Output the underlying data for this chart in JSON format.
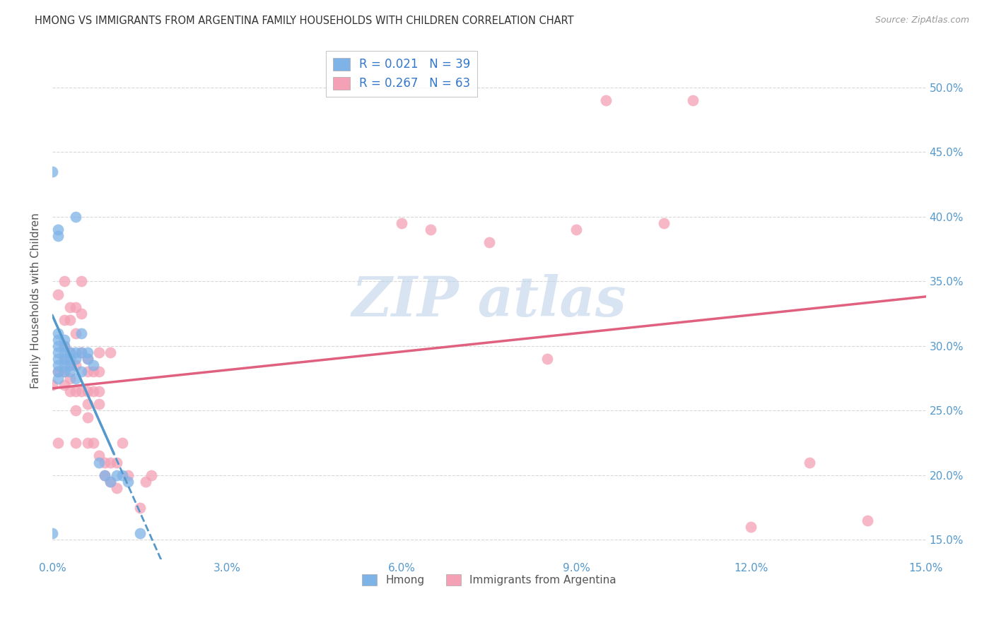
{
  "title": "HMONG VS IMMIGRANTS FROM ARGENTINA FAMILY HOUSEHOLDS WITH CHILDREN CORRELATION CHART",
  "source": "Source: ZipAtlas.com",
  "ylabel": "Family Households with Children",
  "legend_label1": "Hmong",
  "legend_label2": "Immigrants from Argentina",
  "r1": 0.021,
  "n1": 39,
  "r2": 0.267,
  "n2": 63,
  "color1": "#7eb3e8",
  "color2": "#f4a0b5",
  "line_color1": "#5599cc",
  "line_color2": "#e06080",
  "watermark": "ZIP atlas",
  "xlim": [
    0.0,
    0.15
  ],
  "ylim": [
    0.135,
    0.535
  ],
  "xticks": [
    0.0,
    0.03,
    0.06,
    0.09,
    0.12,
    0.15
  ],
  "yticks": [
    0.15,
    0.2,
    0.25,
    0.3,
    0.35,
    0.4,
    0.45,
    0.5
  ],
  "hmong_x": [
    0.0,
    0.0,
    0.001,
    0.001,
    0.001,
    0.001,
    0.001,
    0.001,
    0.001,
    0.001,
    0.001,
    0.001,
    0.002,
    0.002,
    0.002,
    0.002,
    0.002,
    0.002,
    0.003,
    0.003,
    0.003,
    0.003,
    0.004,
    0.004,
    0.004,
    0.004,
    0.005,
    0.005,
    0.005,
    0.006,
    0.006,
    0.007,
    0.008,
    0.009,
    0.01,
    0.011,
    0.012,
    0.013,
    0.015
  ],
  "hmong_y": [
    0.435,
    0.155,
    0.39,
    0.385,
    0.31,
    0.305,
    0.3,
    0.295,
    0.29,
    0.285,
    0.28,
    0.275,
    0.305,
    0.3,
    0.295,
    0.29,
    0.285,
    0.28,
    0.295,
    0.29,
    0.285,
    0.28,
    0.4,
    0.295,
    0.29,
    0.275,
    0.31,
    0.295,
    0.28,
    0.295,
    0.29,
    0.285,
    0.21,
    0.2,
    0.195,
    0.2,
    0.2,
    0.195,
    0.155
  ],
  "arg_x": [
    0.0,
    0.001,
    0.001,
    0.001,
    0.002,
    0.002,
    0.002,
    0.002,
    0.002,
    0.002,
    0.003,
    0.003,
    0.003,
    0.003,
    0.003,
    0.003,
    0.004,
    0.004,
    0.004,
    0.004,
    0.004,
    0.004,
    0.005,
    0.005,
    0.005,
    0.005,
    0.006,
    0.006,
    0.006,
    0.006,
    0.006,
    0.006,
    0.007,
    0.007,
    0.007,
    0.008,
    0.008,
    0.008,
    0.008,
    0.008,
    0.009,
    0.009,
    0.01,
    0.01,
    0.01,
    0.011,
    0.011,
    0.012,
    0.013,
    0.015,
    0.016,
    0.017,
    0.06,
    0.065,
    0.075,
    0.085,
    0.09,
    0.095,
    0.105,
    0.11,
    0.12,
    0.13,
    0.14
  ],
  "arg_y": [
    0.27,
    0.34,
    0.28,
    0.225,
    0.35,
    0.32,
    0.3,
    0.29,
    0.28,
    0.27,
    0.33,
    0.32,
    0.295,
    0.285,
    0.275,
    0.265,
    0.33,
    0.31,
    0.285,
    0.265,
    0.25,
    0.225,
    0.35,
    0.325,
    0.295,
    0.265,
    0.29,
    0.28,
    0.265,
    0.255,
    0.245,
    0.225,
    0.28,
    0.265,
    0.225,
    0.295,
    0.28,
    0.265,
    0.255,
    0.215,
    0.21,
    0.2,
    0.295,
    0.21,
    0.195,
    0.21,
    0.19,
    0.225,
    0.2,
    0.175,
    0.195,
    0.2,
    0.395,
    0.39,
    0.38,
    0.29,
    0.39,
    0.49,
    0.395,
    0.49,
    0.16,
    0.21,
    0.165
  ]
}
